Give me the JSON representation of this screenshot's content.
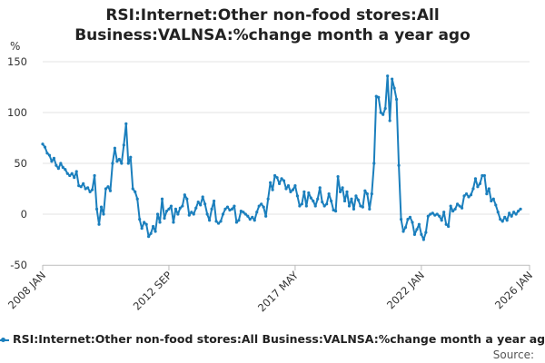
{
  "chart_data": {
    "type": "line",
    "title_lines": [
      "RSI:Internet:Other non-food stores:All",
      "Business:VALNSA:%change month a year ago"
    ],
    "ylabel": "%",
    "xlabel": "",
    "ylim": [
      -50,
      150
    ],
    "yticks": [
      -50,
      0,
      50,
      100,
      150
    ],
    "xlim": [
      "2008-01",
      "2026-01"
    ],
    "xticks": [
      {
        "label": "2008 JAN",
        "x": "2008-01"
      },
      {
        "label": "2012 SEP",
        "x": "2012-09"
      },
      {
        "label": "2017 MAY",
        "x": "2017-05"
      },
      {
        "label": "2022 JAN",
        "x": "2022-01"
      },
      {
        "label": "2026 JAN",
        "x": "2026-01"
      }
    ],
    "grid": true,
    "legend_position": "bottom",
    "color": "#1b7fbd",
    "series": [
      {
        "name": "RSI:Internet:Other non-food stores:All Business:VALNSA:%change month a year ago",
        "points": [
          [
            "2008-01",
            69
          ],
          [
            "2008-02",
            66
          ],
          [
            "2008-03",
            60
          ],
          [
            "2008-04",
            58
          ],
          [
            "2008-05",
            52
          ],
          [
            "2008-06",
            55
          ],
          [
            "2008-07",
            48
          ],
          [
            "2008-08",
            45
          ],
          [
            "2008-09",
            50
          ],
          [
            "2008-10",
            46
          ],
          [
            "2008-11",
            44
          ],
          [
            "2008-12",
            40
          ],
          [
            "2009-01",
            38
          ],
          [
            "2009-02",
            40
          ],
          [
            "2009-03",
            36
          ],
          [
            "2009-04",
            42
          ],
          [
            "2009-05",
            28
          ],
          [
            "2009-06",
            27
          ],
          [
            "2009-07",
            30
          ],
          [
            "2009-08",
            25
          ],
          [
            "2009-09",
            26
          ],
          [
            "2009-10",
            22
          ],
          [
            "2009-11",
            24
          ],
          [
            "2009-12",
            38
          ],
          [
            "2010-01",
            5
          ],
          [
            "2010-02",
            -10
          ],
          [
            "2010-03",
            7
          ],
          [
            "2010-04",
            0
          ],
          [
            "2010-05",
            25
          ],
          [
            "2010-06",
            27
          ],
          [
            "2010-07",
            23
          ],
          [
            "2010-08",
            50
          ],
          [
            "2010-09",
            65
          ],
          [
            "2010-10",
            52
          ],
          [
            "2010-11",
            54
          ],
          [
            "2010-12",
            50
          ],
          [
            "2011-01",
            68
          ],
          [
            "2011-02",
            89
          ],
          [
            "2011-03",
            50
          ],
          [
            "2011-04",
            56
          ],
          [
            "2011-05",
            25
          ],
          [
            "2011-06",
            22
          ],
          [
            "2011-07",
            15
          ],
          [
            "2011-08",
            -5
          ],
          [
            "2011-09",
            -14
          ],
          [
            "2011-10",
            -8
          ],
          [
            "2011-11",
            -10
          ],
          [
            "2011-12",
            -22
          ],
          [
            "2012-01",
            -19
          ],
          [
            "2012-02",
            -12
          ],
          [
            "2012-03",
            -17
          ],
          [
            "2012-04",
            0
          ],
          [
            "2012-05",
            -8
          ],
          [
            "2012-06",
            15
          ],
          [
            "2012-07",
            -4
          ],
          [
            "2012-08",
            3
          ],
          [
            "2012-09",
            5
          ],
          [
            "2012-10",
            8
          ],
          [
            "2012-11",
            -8
          ],
          [
            "2012-12",
            5
          ],
          [
            "2013-01",
            0
          ],
          [
            "2013-02",
            6
          ],
          [
            "2013-03",
            8
          ],
          [
            "2013-04",
            19
          ],
          [
            "2013-05",
            15
          ],
          [
            "2013-06",
            -1
          ],
          [
            "2013-07",
            2
          ],
          [
            "2013-08",
            0
          ],
          [
            "2013-09",
            6
          ],
          [
            "2013-10",
            12
          ],
          [
            "2013-11",
            9
          ],
          [
            "2013-12",
            17
          ],
          [
            "2014-01",
            10
          ],
          [
            "2014-02",
            0
          ],
          [
            "2014-03",
            -6
          ],
          [
            "2014-04",
            5
          ],
          [
            "2014-05",
            13
          ],
          [
            "2014-06",
            -7
          ],
          [
            "2014-07",
            -9
          ],
          [
            "2014-08",
            -7
          ],
          [
            "2014-09",
            0
          ],
          [
            "2014-10",
            5
          ],
          [
            "2014-11",
            7
          ],
          [
            "2014-12",
            4
          ],
          [
            "2015-01",
            5
          ],
          [
            "2015-02",
            8
          ],
          [
            "2015-03",
            -8
          ],
          [
            "2015-04",
            -6
          ],
          [
            "2015-05",
            3
          ],
          [
            "2015-06",
            2
          ],
          [
            "2015-07",
            0
          ],
          [
            "2015-08",
            -2
          ],
          [
            "2015-09",
            -5
          ],
          [
            "2015-10",
            -3
          ],
          [
            "2015-11",
            -6
          ],
          [
            "2015-12",
            2
          ],
          [
            "2016-01",
            8
          ],
          [
            "2016-02",
            10
          ],
          [
            "2016-03",
            7
          ],
          [
            "2016-04",
            -2
          ],
          [
            "2016-05",
            15
          ],
          [
            "2016-06",
            31
          ],
          [
            "2016-07",
            24
          ],
          [
            "2016-08",
            38
          ],
          [
            "2016-09",
            36
          ],
          [
            "2016-10",
            30
          ],
          [
            "2016-11",
            35
          ],
          [
            "2016-12",
            33
          ],
          [
            "2017-01",
            25
          ],
          [
            "2017-02",
            28
          ],
          [
            "2017-03",
            22
          ],
          [
            "2017-04",
            24
          ],
          [
            "2017-05",
            28
          ],
          [
            "2017-06",
            18
          ],
          [
            "2017-07",
            8
          ],
          [
            "2017-08",
            10
          ],
          [
            "2017-09",
            22
          ],
          [
            "2017-10",
            8
          ],
          [
            "2017-11",
            21
          ],
          [
            "2017-12",
            16
          ],
          [
            "2018-01",
            13
          ],
          [
            "2018-02",
            8
          ],
          [
            "2018-03",
            15
          ],
          [
            "2018-04",
            26
          ],
          [
            "2018-05",
            12
          ],
          [
            "2018-06",
            8
          ],
          [
            "2018-07",
            10
          ],
          [
            "2018-08",
            20
          ],
          [
            "2018-09",
            13
          ],
          [
            "2018-10",
            4
          ],
          [
            "2018-11",
            3
          ],
          [
            "2018-12",
            37
          ],
          [
            "2019-01",
            22
          ],
          [
            "2019-02",
            26
          ],
          [
            "2019-03",
            13
          ],
          [
            "2019-04",
            22
          ],
          [
            "2019-05",
            8
          ],
          [
            "2019-06",
            15
          ],
          [
            "2019-07",
            5
          ],
          [
            "2019-08",
            18
          ],
          [
            "2019-09",
            14
          ],
          [
            "2019-10",
            8
          ],
          [
            "2019-11",
            7
          ],
          [
            "2019-12",
            23
          ],
          [
            "2020-01",
            20
          ],
          [
            "2020-02",
            5
          ],
          [
            "2020-03",
            20
          ],
          [
            "2020-04",
            50
          ],
          [
            "2020-05",
            116
          ],
          [
            "2020-06",
            115
          ],
          [
            "2020-07",
            100
          ],
          [
            "2020-08",
            98
          ],
          [
            "2020-09",
            104
          ],
          [
            "2020-10",
            136
          ],
          [
            "2020-11",
            92
          ],
          [
            "2020-12",
            133
          ],
          [
            "2021-01",
            124
          ],
          [
            "2021-02",
            113
          ],
          [
            "2021-03",
            48
          ],
          [
            "2021-04",
            -5
          ],
          [
            "2021-05",
            -17
          ],
          [
            "2021-06",
            -13
          ],
          [
            "2021-07",
            -5
          ],
          [
            "2021-08",
            -3
          ],
          [
            "2021-09",
            -8
          ],
          [
            "2021-10",
            -20
          ],
          [
            "2021-11",
            -15
          ],
          [
            "2021-12",
            -10
          ],
          [
            "2022-01",
            -20
          ],
          [
            "2022-02",
            -25
          ],
          [
            "2022-03",
            -18
          ],
          [
            "2022-04",
            -2
          ],
          [
            "2022-05",
            0
          ],
          [
            "2022-06",
            1
          ],
          [
            "2022-07",
            -1
          ],
          [
            "2022-08",
            0
          ],
          [
            "2022-09",
            -2
          ],
          [
            "2022-10",
            -6
          ],
          [
            "2022-11",
            2
          ],
          [
            "2022-12",
            -10
          ],
          [
            "2023-01",
            -12
          ],
          [
            "2023-02",
            8
          ],
          [
            "2023-03",
            3
          ],
          [
            "2023-04",
            5
          ],
          [
            "2023-05",
            10
          ],
          [
            "2023-06",
            8
          ],
          [
            "2023-07",
            6
          ],
          [
            "2023-08",
            18
          ],
          [
            "2023-09",
            20
          ],
          [
            "2023-10",
            17
          ],
          [
            "2023-11",
            19
          ],
          [
            "2023-12",
            25
          ],
          [
            "2024-01",
            35
          ],
          [
            "2024-02",
            27
          ],
          [
            "2024-03",
            30
          ],
          [
            "2024-04",
            38
          ],
          [
            "2024-05",
            38
          ],
          [
            "2024-06",
            20
          ],
          [
            "2024-07",
            25
          ],
          [
            "2024-08",
            13
          ],
          [
            "2024-09",
            15
          ],
          [
            "2024-10",
            9
          ],
          [
            "2024-11",
            2
          ],
          [
            "2024-12",
            -5
          ],
          [
            "2025-01",
            -7
          ],
          [
            "2025-02",
            -3
          ],
          [
            "2025-03",
            -6
          ],
          [
            "2025-04",
            1
          ],
          [
            "2025-05",
            -2
          ],
          [
            "2025-06",
            2
          ],
          [
            "2025-07",
            0
          ],
          [
            "2025-08",
            3
          ],
          [
            "2025-09",
            5
          ]
        ]
      }
    ],
    "source_label": "Source:"
  }
}
